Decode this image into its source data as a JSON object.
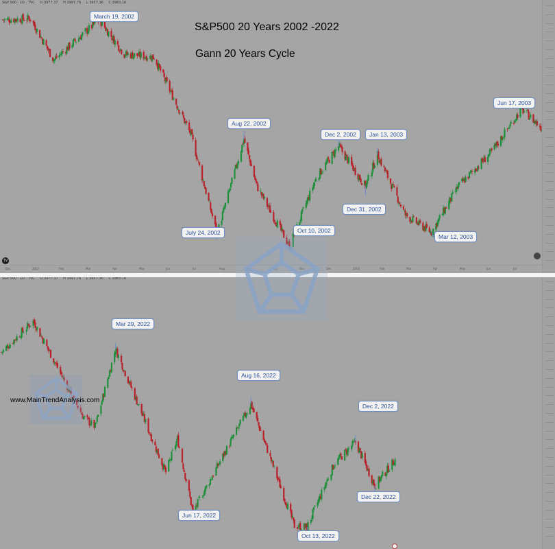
{
  "title": "S&P500 20 Years 2002 -2022",
  "subtitle": "Gann 20 Years Cycle",
  "website": "www.MainTrendAnalysis.com",
  "colors": {
    "up": "#1e8f3a",
    "down": "#b8222b",
    "background": "#a5a5a5",
    "callout_border": "#6d8fc9",
    "callout_text": "#2a4f98"
  },
  "top_panel": {
    "header": {
      "symbol": "S&P 500 · 1D · TVC",
      "open": "O 3977.37",
      "high": "H 3997.76",
      "low": "L 3957.36",
      "close": "C 3983.16"
    },
    "time_labels": [
      "Dec",
      "2002",
      "Feb",
      "Mar",
      "Apr",
      "May",
      "Jun",
      "Jul",
      "Aug",
      "Sep",
      "Oct",
      "Nov",
      "Dec",
      "2003",
      "Feb",
      "Mar",
      "Apr",
      "May",
      "Jun",
      "Jul"
    ],
    "callouts": [
      {
        "label": "March 19, 2002"
      },
      {
        "label": "Aug 22, 2002"
      },
      {
        "label": "Dec 2, 2002"
      },
      {
        "label": "Jan 13, 2003"
      },
      {
        "label": "Jun 17, 2003"
      },
      {
        "label": "July 24, 2002"
      },
      {
        "label": "Oct 10, 2002"
      },
      {
        "label": "Dec 31, 2002"
      },
      {
        "label": "Mar 12, 2003"
      }
    ]
  },
  "bottom_panel": {
    "header": {
      "symbol": "S&P 500 · 1D · TVC",
      "open": "O 3977.37",
      "high": "H 3997.76",
      "low": "L 3957.36",
      "close": "C 3983.16"
    },
    "callouts": [
      {
        "label": "Mar 29, 2022"
      },
      {
        "label": "Aug 16, 2022"
      },
      {
        "label": "Dec 2, 2022"
      },
      {
        "label": "Jun 17, 2022"
      },
      {
        "label": "Oct 13, 2022"
      },
      {
        "label": "Dec 22, 2022"
      }
    ]
  },
  "chart_data": [
    {
      "type": "candlestick",
      "name": "S&P 500 2002-2003",
      "pivots": [
        {
          "date": "2001-12-05",
          "close": 1170
        },
        {
          "date": "2002-01-04",
          "close": 1172
        },
        {
          "date": "2002-01-29",
          "close": 1100
        },
        {
          "date": "2002-03-19",
          "close": 1170
        },
        {
          "date": "2002-04-15",
          "close": 1110
        },
        {
          "date": "2002-05-17",
          "close": 1105
        },
        {
          "date": "2002-06-26",
          "close": 970
        },
        {
          "date": "2002-07-24",
          "close": 797
        },
        {
          "date": "2002-08-22",
          "close": 962
        },
        {
          "date": "2002-09-05",
          "close": 880
        },
        {
          "date": "2002-10-10",
          "close": 776
        },
        {
          "date": "2002-11-08",
          "close": 895
        },
        {
          "date": "2002-12-02",
          "close": 950
        },
        {
          "date": "2002-12-31",
          "close": 880
        },
        {
          "date": "2003-01-13",
          "close": 935
        },
        {
          "date": "2003-02-12",
          "close": 830
        },
        {
          "date": "2003-03-12",
          "close": 800
        },
        {
          "date": "2003-04-10",
          "close": 880
        },
        {
          "date": "2003-05-16",
          "close": 940
        },
        {
          "date": "2003-06-17",
          "close": 1015
        },
        {
          "date": "2003-07-10",
          "close": 980
        }
      ],
      "ylim": [
        760,
        1190
      ]
    },
    {
      "type": "candlestick",
      "name": "S&P 500 2022",
      "pivots": [
        {
          "date": "2021-12-01",
          "close": 4610
        },
        {
          "date": "2022-01-03",
          "close": 4796
        },
        {
          "date": "2022-02-24",
          "close": 4225
        },
        {
          "date": "2022-03-08",
          "close": 4170
        },
        {
          "date": "2022-03-29",
          "close": 4631
        },
        {
          "date": "2022-05-20",
          "close": 3900
        },
        {
          "date": "2022-06-01",
          "close": 4100
        },
        {
          "date": "2022-06-17",
          "close": 3667
        },
        {
          "date": "2022-08-16",
          "close": 4305
        },
        {
          "date": "2022-09-30",
          "close": 3585
        },
        {
          "date": "2022-10-13",
          "close": 3577
        },
        {
          "date": "2022-11-10",
          "close": 3950
        },
        {
          "date": "2022-12-02",
          "close": 4080
        },
        {
          "date": "2022-12-22",
          "close": 3822
        },
        {
          "date": "2023-01-13",
          "close": 3983
        }
      ],
      "ylim": [
        3480,
        4900
      ]
    }
  ]
}
